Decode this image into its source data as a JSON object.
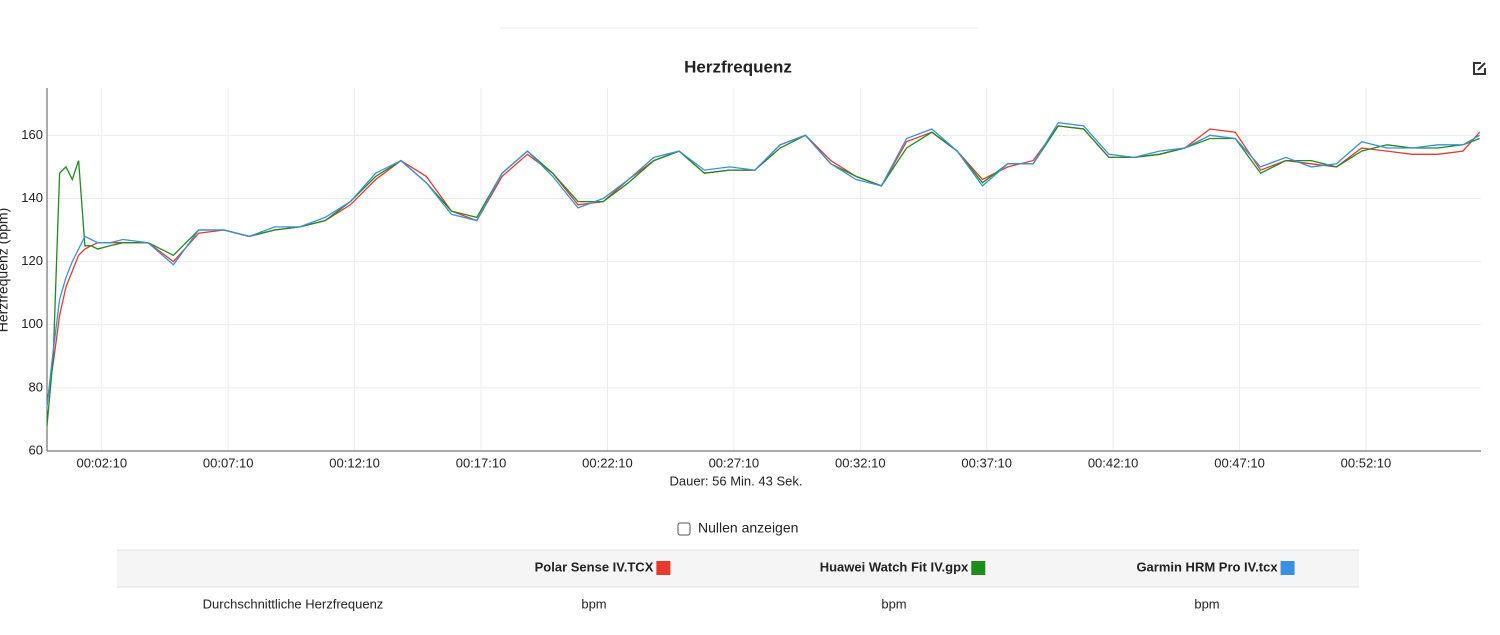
{
  "chart_data": {
    "type": "line",
    "title": "Herzfrequenz",
    "xlabel": "Dauer: 56 Min. 43 Sek.",
    "ylabel": "Herzfrequenz (bpm)",
    "x": [
      0,
      15,
      30,
      45,
      60,
      75,
      90,
      105,
      120,
      150,
      180,
      240,
      300,
      360,
      420,
      480,
      540,
      600,
      660,
      720,
      780,
      840,
      900,
      960,
      1020,
      1080,
      1140,
      1200,
      1260,
      1320,
      1380,
      1440,
      1500,
      1560,
      1620,
      1680,
      1740,
      1800,
      1860,
      1920,
      1980,
      2040,
      2100,
      2160,
      2220,
      2280,
      2340,
      2400,
      2460,
      2520,
      2580,
      2640,
      2700,
      2760,
      2820,
      2880,
      2940,
      3000,
      3060,
      3120,
      3180,
      3240,
      3300,
      3360,
      3400
    ],
    "xlim": [
      0,
      3403
    ],
    "xticks": [
      {
        "value": 130,
        "label": "00:02:10"
      },
      {
        "value": 430,
        "label": "00:07:10"
      },
      {
        "value": 730,
        "label": "00:12:10"
      },
      {
        "value": 1030,
        "label": "00:17:10"
      },
      {
        "value": 1330,
        "label": "00:22:10"
      },
      {
        "value": 1630,
        "label": "00:27:10"
      },
      {
        "value": 1930,
        "label": "00:32:10"
      },
      {
        "value": 2230,
        "label": "00:37:10"
      },
      {
        "value": 2530,
        "label": "00:42:10"
      },
      {
        "value": 2830,
        "label": "00:47:10"
      },
      {
        "value": 3130,
        "label": "00:52:10"
      }
    ],
    "ylim": [
      60,
      175
    ],
    "yticks": [
      60,
      80,
      100,
      120,
      140,
      160
    ],
    "grid": true,
    "series": [
      {
        "name": "Polar Sense IV.TCX",
        "color": "#e8392b",
        "values": [
          75,
          88,
          103,
          112,
          117,
          122,
          124,
          125,
          126,
          126,
          126,
          126,
          120,
          129,
          130,
          128,
          130,
          131,
          133,
          138,
          146,
          152,
          147,
          136,
          133,
          147,
          154,
          148,
          138,
          139,
          146,
          152,
          155,
          148,
          149,
          149,
          157,
          160,
          152,
          147,
          144,
          158,
          161,
          155,
          146,
          150,
          152,
          163,
          162,
          153,
          153,
          154,
          156,
          162,
          161,
          149,
          152,
          151,
          150,
          156,
          155,
          154,
          154,
          155,
          161
        ]
      },
      {
        "name": "Huawei Watch Fit IV.gpx",
        "color": "#1e8c1e",
        "values": [
          68,
          90,
          148,
          150,
          146,
          152,
          125,
          125,
          124,
          125,
          126,
          126,
          122,
          130,
          130,
          128,
          130,
          131,
          133,
          139,
          147,
          152,
          145,
          136,
          134,
          148,
          155,
          148,
          139,
          139,
          145,
          152,
          155,
          148,
          149,
          149,
          156,
          160,
          151,
          147,
          144,
          156,
          161,
          155,
          145,
          151,
          151,
          163,
          162,
          153,
          153,
          154,
          156,
          159,
          159,
          148,
          152,
          152,
          150,
          155,
          157,
          156,
          156,
          157,
          159
        ]
      },
      {
        "name": "Garmin HRM Pro IV.tcx",
        "color": "#3b8fdf",
        "values": [
          74,
          92,
          108,
          115,
          120,
          124,
          128,
          127,
          126,
          126,
          127,
          126,
          119,
          130,
          130,
          128,
          131,
          131,
          134,
          139,
          148,
          152,
          145,
          135,
          133,
          148,
          155,
          147,
          137,
          140,
          146,
          153,
          155,
          149,
          150,
          149,
          157,
          160,
          151,
          146,
          144,
          159,
          162,
          155,
          144,
          151,
          151,
          164,
          163,
          154,
          153,
          155,
          156,
          160,
          159,
          150,
          153,
          150,
          151,
          158,
          156,
          156,
          157,
          157,
          160
        ]
      }
    ]
  },
  "controls": {
    "checkbox_label": "Nullen anzeigen"
  },
  "table": {
    "row_label": "Durchschnittliche Herzfrequenz",
    "units": [
      "bpm",
      "bpm",
      "bpm"
    ]
  }
}
